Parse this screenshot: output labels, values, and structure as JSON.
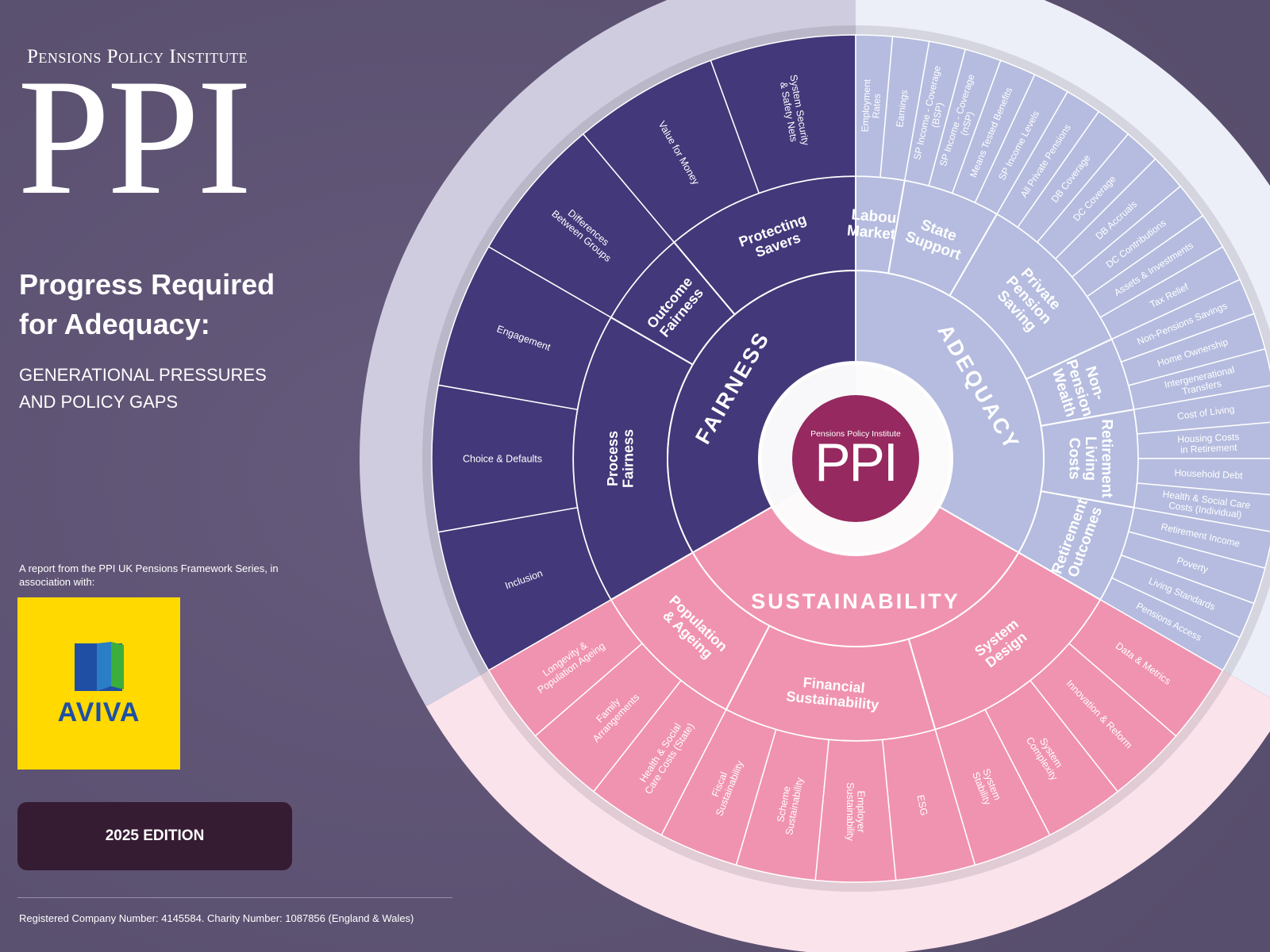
{
  "left_panel": {
    "institute_name": "Pensions Policy Institute",
    "logo_text": "PPI",
    "title": "Progress Required for Adequacy:",
    "subtitle": "GENERATIONAL PRESSURES AND POLICY GAPS",
    "report_note": "A report from the PPI UK Pensions Framework Series, in association with:",
    "partner_logo": "AVIVA",
    "edition": "2025 EDITION",
    "footer": "Registered Company Number: 4145584. Charity Number: 1087856 (England & Wales)"
  },
  "wheel": {
    "center": {
      "institute_name": "Pensions Policy Institute",
      "logo_text": "PPI"
    },
    "colors": {
      "fairness": "#433879",
      "adequacy": "#b5bcdf",
      "sustainability": "#f093b0",
      "center": "#96295f"
    },
    "domains": [
      {
        "name": "FAIRNESS",
        "theme": "fairness",
        "subdomains": [
          {
            "name": "Process\nFairness",
            "indicators": [
              "Inclusion",
              "Choice & Defaults",
              "Engagement"
            ]
          },
          {
            "name": "Outcome\nFairness",
            "indicators": [
              "Differences\nBetween Groups"
            ]
          },
          {
            "name": "Protecting\nSavers",
            "indicators": [
              "Value for Money",
              "System Security\n& Safety Nets"
            ]
          }
        ]
      },
      {
        "name": "ADEQUACY",
        "theme": "adequacy",
        "subdomains": [
          {
            "name": "Labour\nMarkets",
            "indicators": [
              "Employment\nRates",
              "Earnings"
            ]
          },
          {
            "name": "State\nSupport",
            "indicators": [
              "SP Income - Coverage\n(BSP)",
              "SP Income - Coverage\n(nSP)",
              "Means Tested Benefits",
              "SP Income Levels"
            ]
          },
          {
            "name": "Private\nPension\nSaving",
            "indicators": [
              "All Private Pensions",
              "DB Coverage",
              "DC Coverage",
              "DB Accruals",
              "DC Contributions",
              "Assets & Investments",
              "Tax Relief"
            ]
          },
          {
            "name": "Non-\nPension\nWealth",
            "indicators": [
              "Non-Pensions Savings",
              "Home Ownership",
              "Intergenerational\nTransfers"
            ]
          },
          {
            "name": "Retirement\nLiving\nCosts",
            "indicators": [
              "Cost of Living",
              "Housing Costs\nin Retirement",
              "Household Debt",
              "Health & Social Care\nCosts (Individual)"
            ]
          },
          {
            "name": "Retirement\nOutcomes",
            "indicators": [
              "Retirement Income",
              "Poverty",
              "Living Standards",
              "Pensions Access"
            ]
          }
        ]
      },
      {
        "name": "SUSTAINABILITY",
        "theme": "sustainability",
        "subdomains": [
          {
            "name": "Population\n& Ageing",
            "indicators": [
              "Longevity &\nPopulation Ageing",
              "Family\nArrangements",
              "Health & Social\nCare Costs (State)"
            ]
          },
          {
            "name": "Financial\nSustainability",
            "indicators": [
              "Fiscal\nSustainability",
              "Scheme\nSustainability",
              "Employer\nSustainability",
              "ESG"
            ]
          },
          {
            "name": "System\nDesign",
            "indicators": [
              "System\nStability",
              "System\nComplexity",
              "Innovation & Reform",
              "Data & Metrics"
            ]
          }
        ]
      }
    ]
  }
}
